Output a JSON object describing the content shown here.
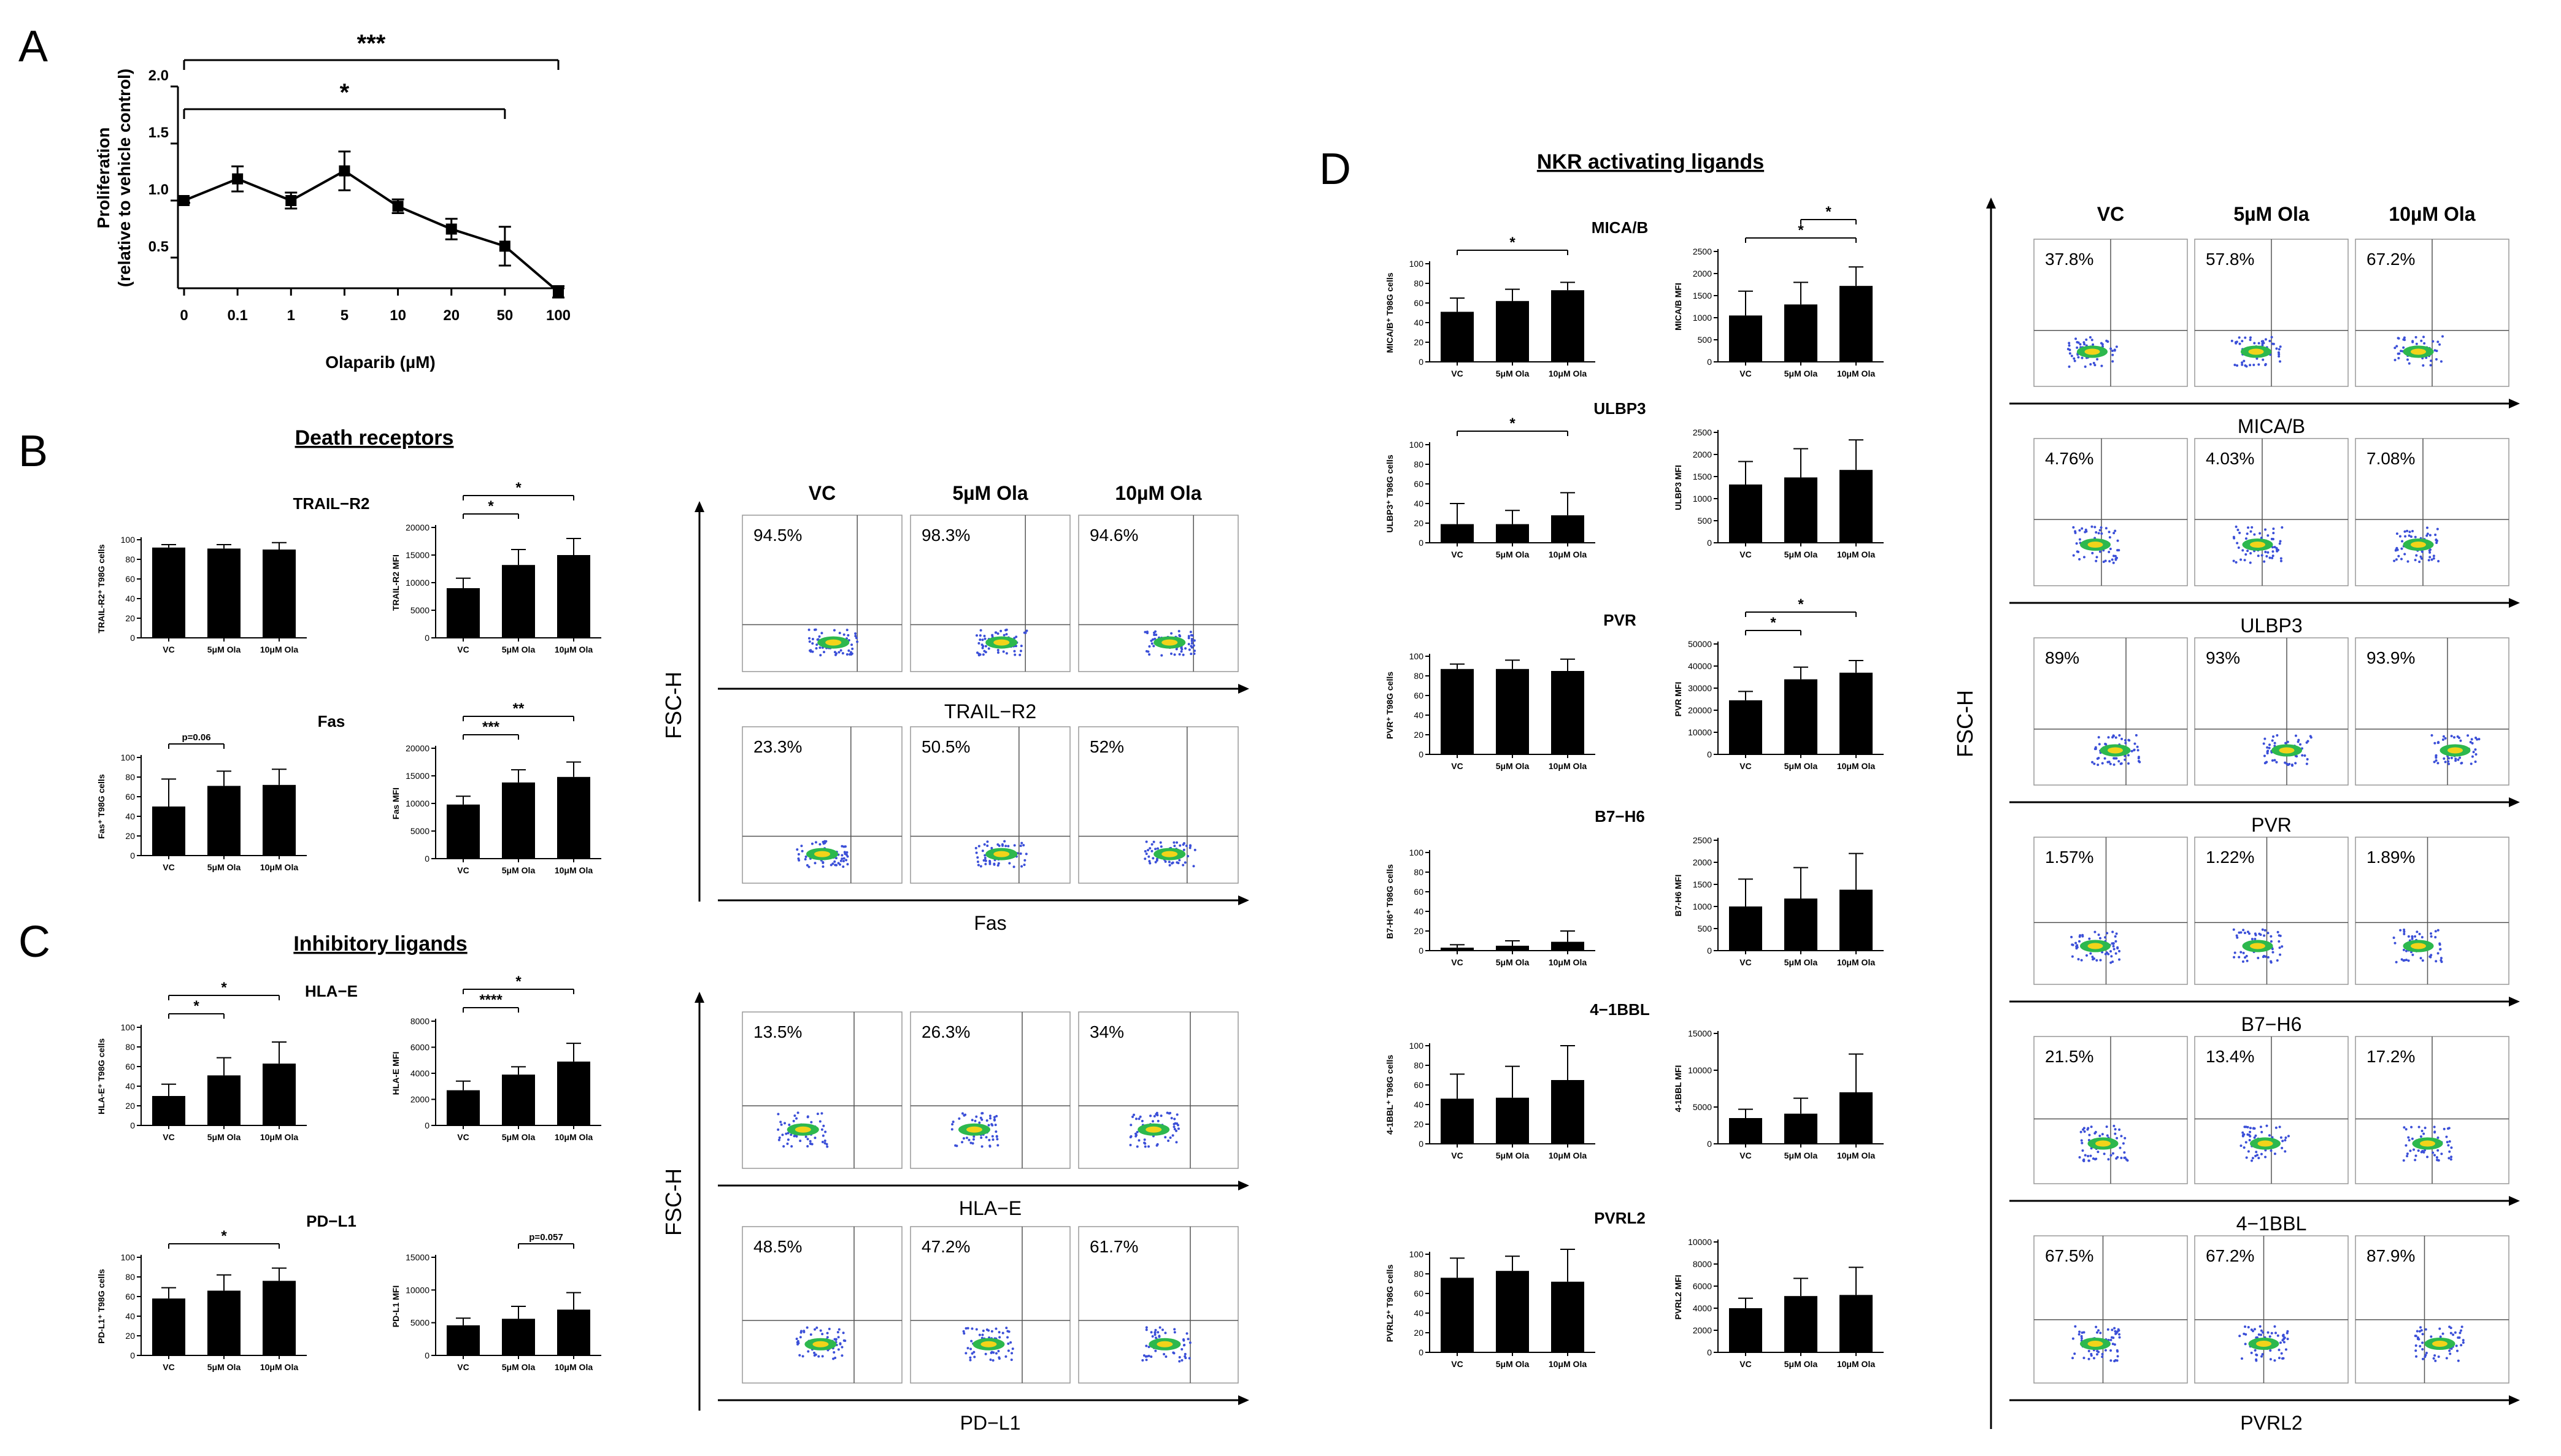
{
  "panels": {
    "A": {
      "letter": "A",
      "xlabel": "Olaparib (µM)",
      "ylabel_line1": "Proliferation",
      "ylabel_line2": "(relative to vehicle control)",
      "yticks": [
        "0.5",
        "1.0",
        "1.5",
        "2.0"
      ],
      "sig": [
        "***",
        "*"
      ]
    },
    "B": {
      "letter": "B",
      "section_title": "Death receptors"
    },
    "C": {
      "letter": "C",
      "section_title": "Inhibitory ligands"
    },
    "D": {
      "letter": "D",
      "section_title": "NKR activating ligands"
    }
  },
  "flow_common": {
    "conditions": [
      "VC",
      "5µM Ola",
      "10µM Ola"
    ],
    "yaxis_label": "FSC-H"
  },
  "chart_data": [
    {
      "id": "A",
      "type": "line",
      "x": [
        "0",
        "0.1",
        "1",
        "5",
        "10",
        "20",
        "50",
        "100"
      ],
      "values": [
        1.0,
        1.19,
        1.0,
        1.26,
        0.95,
        0.75,
        0.6,
        0.2
      ],
      "errors": [
        0.02,
        0.11,
        0.07,
        0.17,
        0.06,
        0.09,
        0.17,
        0.05
      ],
      "ylim": [
        0.2,
        2.0
      ],
      "xlabel": "Olaparib (µM)",
      "ylabel": "Proliferation (relative to vehicle control)",
      "significance": [
        {
          "from": "0",
          "to": "100",
          "label": "***"
        },
        {
          "from": "0",
          "to": "50",
          "label": "*"
        }
      ]
    },
    {
      "id": "TRAIL-R2-pct",
      "type": "bar",
      "title": "TRAIL−R2",
      "ylabel": "TRAIL-R2⁺ T98G cells",
      "yticks": [
        0,
        20,
        40,
        60,
        80,
        100
      ],
      "ylim": [
        0,
        100
      ],
      "categories": [
        "VC",
        "5μM Ola",
        "10μM Ola"
      ],
      "values": [
        92,
        91,
        90
      ],
      "errors": [
        3,
        4,
        7
      ],
      "significance": []
    },
    {
      "id": "TRAIL-R2-mfi",
      "type": "bar",
      "ylabel": "TRAIL-R2 MFI",
      "yticks": [
        0,
        5000,
        10000,
        15000,
        20000
      ],
      "ylim": [
        0,
        20000
      ],
      "categories": [
        "VC",
        "5μM Ola",
        "10μM Ola"
      ],
      "values": [
        9000,
        13200,
        15000
      ],
      "errors": [
        1800,
        2800,
        3000
      ],
      "significance": [
        {
          "from": 0,
          "to": 1,
          "label": "*"
        },
        {
          "from": 0,
          "to": 2,
          "label": "*"
        }
      ]
    },
    {
      "id": "Fas-pct",
      "type": "bar",
      "title": "Fas",
      "ylabel": "Fas⁺ T98G cells",
      "yticks": [
        0,
        20,
        40,
        60,
        80,
        100
      ],
      "ylim": [
        0,
        100
      ],
      "categories": [
        "VC",
        "5μM Ola",
        "10μM Ola"
      ],
      "values": [
        50,
        71,
        72
      ],
      "errors": [
        28,
        15,
        16
      ],
      "significance": [
        {
          "from": 0,
          "to": 1,
          "label": "p=0.06"
        }
      ]
    },
    {
      "id": "Fas-mfi",
      "type": "bar",
      "ylabel": "Fas MFI",
      "yticks": [
        0,
        5000,
        10000,
        15000,
        20000
      ],
      "ylim": [
        0,
        20000
      ],
      "categories": [
        "VC",
        "5μM Ola",
        "10μM Ola"
      ],
      "values": [
        9800,
        13800,
        14800
      ],
      "errors": [
        1500,
        2300,
        2700
      ],
      "significance": [
        {
          "from": 0,
          "to": 1,
          "label": "***"
        },
        {
          "from": 0,
          "to": 2,
          "label": "**"
        }
      ]
    },
    {
      "id": "HLA-E-pct",
      "type": "bar",
      "title": "HLA−E",
      "ylabel": "HLA-E⁺ T98G cells",
      "yticks": [
        0,
        20,
        40,
        60,
        80,
        100
      ],
      "ylim": [
        0,
        100
      ],
      "categories": [
        "VC",
        "5μM Ola",
        "10μM Ola"
      ],
      "values": [
        30,
        51,
        63
      ],
      "errors": [
        12,
        18,
        22
      ],
      "significance": [
        {
          "from": 0,
          "to": 1,
          "label": "*"
        },
        {
          "from": 0,
          "to": 2,
          "label": "*"
        }
      ]
    },
    {
      "id": "HLA-E-mfi",
      "type": "bar",
      "ylabel": "HLA-E MFI",
      "yticks": [
        0,
        2000,
        4000,
        6000,
        8000
      ],
      "ylim": [
        0,
        8000
      ],
      "categories": [
        "VC",
        "5μM Ola",
        "10μM Ola"
      ],
      "values": [
        2700,
        3900,
        4900
      ],
      "errors": [
        700,
        600,
        1400
      ],
      "significance": [
        {
          "from": 0,
          "to": 1,
          "label": "****"
        },
        {
          "from": 0,
          "to": 2,
          "label": "*"
        }
      ]
    },
    {
      "id": "PD-L1-pct",
      "type": "bar",
      "title": "PD−L1",
      "ylabel": "PD-L1⁺ T98G cells",
      "yticks": [
        0,
        20,
        40,
        60,
        80,
        100
      ],
      "ylim": [
        0,
        100
      ],
      "categories": [
        "VC",
        "5μM Ola",
        "10μM Ola"
      ],
      "values": [
        58,
        66,
        76
      ],
      "errors": [
        11,
        16,
        13
      ],
      "significance": [
        {
          "from": 0,
          "to": 2,
          "label": "*"
        }
      ]
    },
    {
      "id": "PD-L1-mfi",
      "type": "bar",
      "ylabel": "PD-L1 MFI",
      "yticks": [
        0,
        5000,
        10000,
        15000
      ],
      "ylim": [
        0,
        15000
      ],
      "categories": [
        "VC",
        "5μM Ola",
        "10μM Ola"
      ],
      "values": [
        4600,
        5600,
        7000
      ],
      "errors": [
        1100,
        1900,
        2600
      ],
      "significance": [
        {
          "from": 1,
          "to": 2,
          "label": "p=0.057"
        }
      ]
    },
    {
      "id": "MICA/B-pct",
      "type": "bar",
      "title": "MICA/B",
      "ylabel": "MICA/B⁺ T98G cells",
      "yticks": [
        0,
        20,
        40,
        60,
        80,
        100
      ],
      "ylim": [
        0,
        100
      ],
      "categories": [
        "VC",
        "5μM Ola",
        "10μM Ola"
      ],
      "values": [
        51,
        62,
        73
      ],
      "errors": [
        14,
        12,
        8
      ],
      "significance": [
        {
          "from": 0,
          "to": 2,
          "label": "*"
        }
      ]
    },
    {
      "id": "MICA/B-mfi",
      "type": "bar",
      "ylabel": "MICA/B MFI",
      "yticks": [
        0,
        500,
        1000,
        1500,
        2000,
        2500
      ],
      "ylim": [
        0,
        2500
      ],
      "categories": [
        "VC",
        "5μM Ola",
        "10μM Ola"
      ],
      "values": [
        1050,
        1300,
        1720
      ],
      "errors": [
        550,
        500,
        430
      ],
      "significance": [
        {
          "from": 0,
          "to": 2,
          "label": "*"
        },
        {
          "from": 1,
          "to": 2,
          "label": "*"
        }
      ]
    },
    {
      "id": "ULBP3-pct",
      "type": "bar",
      "title": "ULBP3",
      "ylabel": "ULBP3⁺ T98G cells",
      "yticks": [
        0,
        20,
        40,
        60,
        80,
        100
      ],
      "ylim": [
        0,
        100
      ],
      "categories": [
        "VC",
        "5μM Ola",
        "10μM Ola"
      ],
      "values": [
        19,
        19,
        28
      ],
      "errors": [
        21,
        14,
        23
      ],
      "significance": [
        {
          "from": 0,
          "to": 2,
          "label": "*"
        }
      ]
    },
    {
      "id": "ULBP3-mfi",
      "type": "bar",
      "ylabel": "ULBP3 MFI",
      "yticks": [
        0,
        500,
        1000,
        1500,
        2000,
        2500
      ],
      "ylim": [
        0,
        2500
      ],
      "categories": [
        "VC",
        "5μM Ola",
        "10μM Ola"
      ],
      "values": [
        1320,
        1480,
        1650
      ],
      "errors": [
        520,
        650,
        680
      ],
      "significance": []
    },
    {
      "id": "PVR-pct",
      "type": "bar",
      "title": "PVR",
      "ylabel": "PVR⁺ T98G cells",
      "yticks": [
        0,
        20,
        40,
        60,
        80,
        100
      ],
      "ylim": [
        0,
        100
      ],
      "categories": [
        "VC",
        "5μM Ola",
        "10μM Ola"
      ],
      "values": [
        87,
        87,
        85
      ],
      "errors": [
        5,
        9,
        12
      ],
      "significance": []
    },
    {
      "id": "PVR-mfi",
      "type": "bar",
      "ylabel": "PVR MFI",
      "yticks": [
        0,
        10000,
        20000,
        30000,
        40000,
        50000
      ],
      "ylim": [
        0,
        50000
      ],
      "categories": [
        "VC",
        "5μM Ola",
        "10μM Ola"
      ],
      "values": [
        24500,
        34000,
        37000
      ],
      "errors": [
        4000,
        5500,
        5500
      ],
      "significance": [
        {
          "from": 0,
          "to": 1,
          "label": "*"
        },
        {
          "from": 0,
          "to": 2,
          "label": "*"
        }
      ]
    },
    {
      "id": "B7-H6-pct",
      "type": "bar",
      "title": "B7−H6",
      "ylabel": "B7-H6⁺ T98G cells",
      "yticks": [
        0,
        20,
        40,
        60,
        80,
        100
      ],
      "ylim": [
        0,
        100
      ],
      "categories": [
        "VC",
        "5μM Ola",
        "10μM Ola"
      ],
      "values": [
        3,
        5,
        9
      ],
      "errors": [
        3,
        5,
        11
      ],
      "significance": []
    },
    {
      "id": "B7-H6-mfi",
      "type": "bar",
      "ylabel": "B7-H6 MFI",
      "yticks": [
        0,
        500,
        1000,
        1500,
        2000,
        2500
      ],
      "ylim": [
        0,
        2500
      ],
      "categories": [
        "VC",
        "5μM Ola",
        "10μM Ola"
      ],
      "values": [
        1000,
        1180,
        1380
      ],
      "errors": [
        620,
        700,
        820
      ],
      "significance": []
    },
    {
      "id": "4-1BBL-pct",
      "type": "bar",
      "title": "4−1BBL",
      "ylabel": "4-1BBL⁺ T98G cells",
      "yticks": [
        0,
        20,
        40,
        60,
        80,
        100
      ],
      "ylim": [
        0,
        100
      ],
      "categories": [
        "VC",
        "5μM Ola",
        "10μM Ola"
      ],
      "values": [
        46,
        47,
        65
      ],
      "errors": [
        25,
        32,
        35
      ],
      "significance": []
    },
    {
      "id": "4-1BBL-mfi",
      "type": "bar",
      "ylabel": "4-1BBL MFI",
      "yticks": [
        0,
        5000,
        10000,
        15000
      ],
      "ylim": [
        0,
        15000
      ],
      "categories": [
        "VC",
        "5μM Ola",
        "10μM Ola"
      ],
      "values": [
        3500,
        4100,
        7000
      ],
      "errors": [
        1200,
        2100,
        5200
      ],
      "significance": []
    },
    {
      "id": "PVRL2-pct",
      "type": "bar",
      "title": "PVRL2",
      "ylabel": "PVRL2⁺ T98G cells",
      "yticks": [
        0,
        20,
        40,
        60,
        80,
        100
      ],
      "ylim": [
        0,
        100
      ],
      "categories": [
        "VC",
        "5μM Ola",
        "10μM Ola"
      ],
      "values": [
        76,
        83,
        72
      ],
      "errors": [
        20,
        15,
        33
      ],
      "significance": []
    },
    {
      "id": "PVRL2-mfi",
      "type": "bar",
      "ylabel": "PVRL2 MFI",
      "yticks": [
        0,
        2000,
        4000,
        6000,
        8000,
        10000
      ],
      "ylim": [
        0,
        10000
      ],
      "categories": [
        "VC",
        "5μM Ola",
        "10μM Ola"
      ],
      "values": [
        4000,
        5100,
        5200
      ],
      "errors": [
        900,
        1600,
        2500
      ],
      "significance": []
    },
    {
      "id": "flow-TRAIL-R2",
      "type": "scatter",
      "xlabel": "TRAIL−R2",
      "percentages": [
        "94.5%",
        "98.3%",
        "94.6%"
      ]
    },
    {
      "id": "flow-Fas",
      "type": "scatter",
      "xlabel": "Fas",
      "percentages": [
        "23.3%",
        "50.5%",
        "52%"
      ]
    },
    {
      "id": "flow-HLA-E",
      "type": "scatter",
      "xlabel": "HLA−E",
      "percentages": [
        "13.5%",
        "26.3%",
        "34%"
      ]
    },
    {
      "id": "flow-PD-L1",
      "type": "scatter",
      "xlabel": "PD−L1",
      "percentages": [
        "48.5%",
        "47.2%",
        "61.7%"
      ]
    },
    {
      "id": "flow-MICA/B",
      "type": "scatter",
      "xlabel": "MICA/B",
      "percentages": [
        "37.8%",
        "57.8%",
        "67.2%"
      ]
    },
    {
      "id": "flow-ULBP3",
      "type": "scatter",
      "xlabel": "ULBP3",
      "percentages": [
        "4.76%",
        "4.03%",
        "7.08%"
      ]
    },
    {
      "id": "flow-PVR",
      "type": "scatter",
      "xlabel": "PVR",
      "percentages": [
        "89%",
        "93%",
        "93.9%"
      ]
    },
    {
      "id": "flow-B7-H6",
      "type": "scatter",
      "xlabel": "B7−H6",
      "percentages": [
        "1.57%",
        "1.22%",
        "1.89%"
      ]
    },
    {
      "id": "flow-4-1BBL",
      "type": "scatter",
      "xlabel": "4−1BBL",
      "percentages": [
        "21.5%",
        "13.4%",
        "17.2%"
      ]
    },
    {
      "id": "flow-PVRL2",
      "type": "scatter",
      "xlabel": "PVRL2",
      "percentages": [
        "67.5%",
        "67.2%",
        "87.9%"
      ]
    }
  ]
}
